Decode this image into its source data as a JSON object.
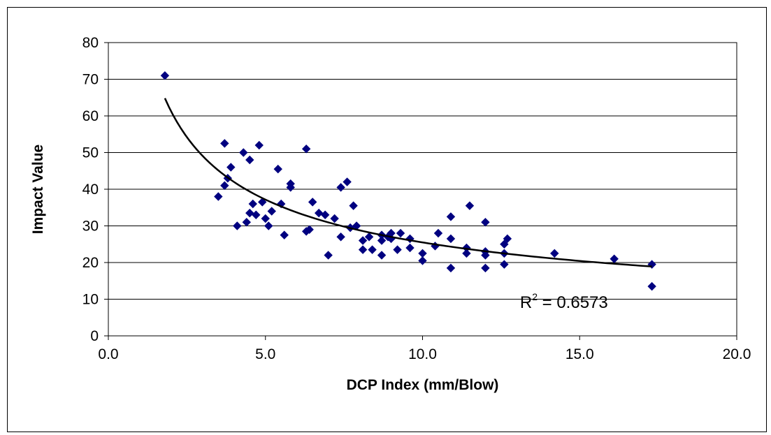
{
  "chart_data": {
    "type": "scatter",
    "title": "",
    "xlabel": "DCP Index (mm/Blow)",
    "ylabel": "Impact Value",
    "xlim": [
      0,
      20
    ],
    "ylim": [
      0,
      80
    ],
    "x_ticks": [
      "0.0",
      "5.0",
      "10.0",
      "15.0",
      "20.0"
    ],
    "y_ticks": [
      "0",
      "10",
      "20",
      "30",
      "40",
      "50",
      "60",
      "70",
      "80"
    ],
    "grid": "horizontal",
    "legend": "none",
    "marker_color": "#000080",
    "trendline": {
      "type": "power",
      "color": "#000000",
      "x_range": [
        1.8,
        17.3
      ],
      "r2_prefix": "R",
      "r2_exponent": "2",
      "r2_value": " = 0.6573"
    },
    "points": [
      [
        1.8,
        71
      ],
      [
        3.5,
        38
      ],
      [
        3.7,
        41
      ],
      [
        3.7,
        52.5
      ],
      [
        3.8,
        43
      ],
      [
        3.9,
        46
      ],
      [
        4.1,
        30
      ],
      [
        4.3,
        50
      ],
      [
        4.4,
        31
      ],
      [
        4.5,
        33.5
      ],
      [
        4.5,
        48
      ],
      [
        4.6,
        36
      ],
      [
        4.7,
        33
      ],
      [
        4.8,
        52
      ],
      [
        4.9,
        36.5
      ],
      [
        5.0,
        32
      ],
      [
        5.1,
        30
      ],
      [
        5.2,
        34
      ],
      [
        5.4,
        45.5
      ],
      [
        5.5,
        36
      ],
      [
        5.6,
        27.5
      ],
      [
        5.8,
        40.5
      ],
      [
        5.8,
        41.5
      ],
      [
        6.3,
        51
      ],
      [
        6.3,
        28.5
      ],
      [
        6.4,
        29
      ],
      [
        6.5,
        36.5
      ],
      [
        6.7,
        33.5
      ],
      [
        6.9,
        33
      ],
      [
        7.0,
        22
      ],
      [
        7.2,
        32
      ],
      [
        7.4,
        27
      ],
      [
        7.4,
        40.5
      ],
      [
        7.6,
        42
      ],
      [
        7.7,
        29.5
      ],
      [
        7.8,
        35.5
      ],
      [
        7.9,
        30
      ],
      [
        8.1,
        23.5
      ],
      [
        8.1,
        26
      ],
      [
        8.3,
        27
      ],
      [
        8.4,
        23.5
      ],
      [
        8.7,
        22
      ],
      [
        8.7,
        26
      ],
      [
        8.7,
        27.5
      ],
      [
        8.9,
        27
      ],
      [
        9.0,
        28
      ],
      [
        9.0,
        26.5
      ],
      [
        9.2,
        23.5
      ],
      [
        9.3,
        28
      ],
      [
        9.6,
        26.5
      ],
      [
        9.6,
        24
      ],
      [
        10.0,
        20.5
      ],
      [
        10.0,
        22.5
      ],
      [
        10.4,
        24.5
      ],
      [
        10.5,
        28
      ],
      [
        10.9,
        18.5
      ],
      [
        10.9,
        26.5
      ],
      [
        10.9,
        32.5
      ],
      [
        11.4,
        22.5
      ],
      [
        11.4,
        24
      ],
      [
        11.5,
        35.5
      ],
      [
        12.0,
        18.5
      ],
      [
        12.0,
        22
      ],
      [
        12.0,
        31
      ],
      [
        12.0,
        23
      ],
      [
        12.6,
        19.5
      ],
      [
        12.6,
        22.5
      ],
      [
        12.6,
        25
      ],
      [
        12.7,
        26.5
      ],
      [
        14.2,
        22.5
      ],
      [
        16.1,
        21
      ],
      [
        17.3,
        13.5
      ],
      [
        17.3,
        19.5
      ]
    ]
  }
}
